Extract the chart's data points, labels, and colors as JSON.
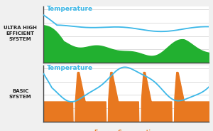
{
  "background_color": "#f0f0f0",
  "top_label": "ULTRA HIGH\nEFFICIENT\nSYSTEM",
  "bottom_label": "BASIC\nSYSTEM",
  "top_temp_color": "#3db8e8",
  "top_energy_color": "#22b030",
  "bottom_temp_color": "#3db8e8",
  "bottom_energy_color": "#e87820",
  "top_energy_label_color": "#22b030",
  "bottom_energy_label_color": "#e87820",
  "temp_label_color": "#3db8e8",
  "grid_color": "#d0d0d0",
  "axis_color": "#444444",
  "label_font_size": 5.0,
  "temp_font_size": 6.5,
  "energy_font_size": 5.5
}
